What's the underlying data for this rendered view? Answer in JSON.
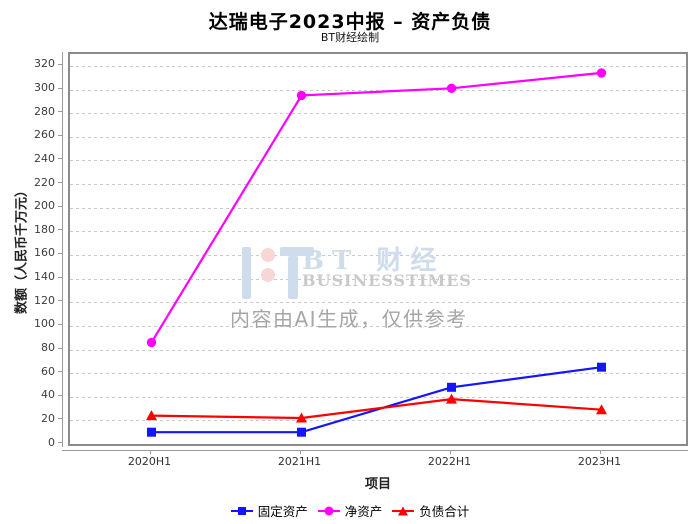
{
  "header": {
    "title": "达瑞电子2023中报 – 资产负债",
    "subtitle": "BT财经绘制"
  },
  "watermark": {
    "brand_cn": "BT 财经",
    "brand_en": "BUSINESSTIMES",
    "disclaimer": "内容由AI生成，仅供参考",
    "brand_color": "#cfdcec",
    "dot_color": "#f6d7d5",
    "en_color": "#c9c9c9",
    "disclaimer_color": "#a6a6a6"
  },
  "chart_data": {
    "type": "line",
    "title": "达瑞电子2023中报 – 资产负债",
    "xlabel": "项目",
    "ylabel": "数额（人民币千万元）",
    "categories": [
      "2020H1",
      "2021H1",
      "2022H1",
      "2023H1"
    ],
    "series": [
      {
        "name": "固定资产",
        "marker": "square",
        "color": "#1414ff",
        "values": [
          10,
          10,
          48,
          65
        ]
      },
      {
        "name": "净资产",
        "marker": "circle",
        "color": "#ff00ff",
        "values": [
          86,
          295,
          301,
          314
        ]
      },
      {
        "name": "负债合计",
        "marker": "triangle",
        "color": "#ff0000",
        "values": [
          24,
          22,
          38,
          29
        ]
      }
    ],
    "ylim": [
      0,
      330
    ],
    "ytick_step": 20,
    "grid": "horizontal-dashed",
    "legend_position": "bottom",
    "axis_colors": {
      "grid": "#c9c9c9",
      "axis": "#9a9a9a",
      "tick_label": "#3d3d3d"
    }
  }
}
